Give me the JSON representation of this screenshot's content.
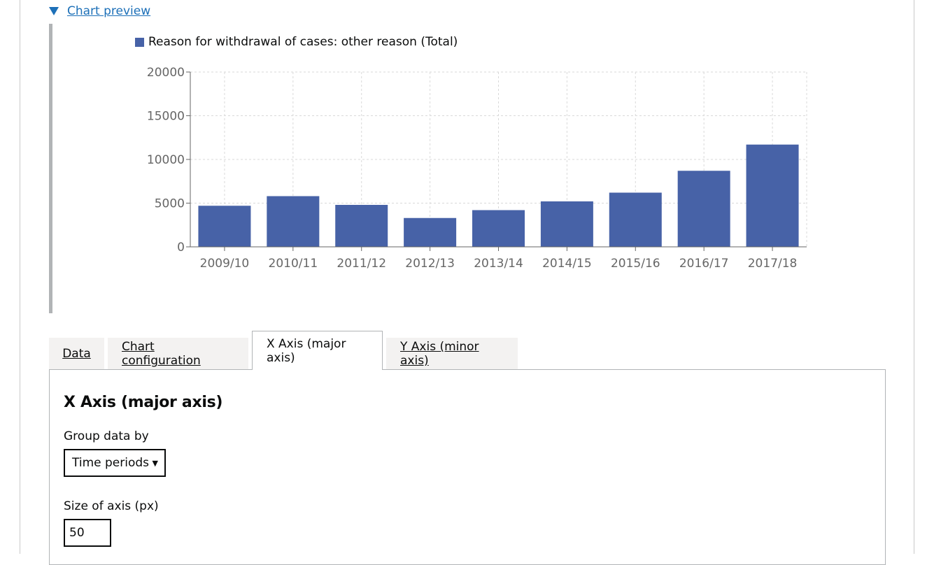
{
  "details": {
    "summary": "Chart preview"
  },
  "chart_data": {
    "type": "bar",
    "legend": "Reason for withdrawal of cases: other reason (Total)",
    "categories": [
      "2009/10",
      "2010/11",
      "2011/12",
      "2012/13",
      "2013/14",
      "2014/15",
      "2015/16",
      "2016/17",
      "2017/18"
    ],
    "series": [
      {
        "name": "Reason for withdrawal of cases: other reason (Total)",
        "values": [
          4700,
          5800,
          4800,
          3300,
          4200,
          5200,
          6200,
          8700,
          11700
        ]
      }
    ],
    "yticks": [
      "0",
      "5000",
      "10000",
      "15000",
      "20000"
    ],
    "ylim": [
      0,
      20000
    ],
    "grid": true,
    "bar_color": "#4762a7"
  },
  "tabs": [
    {
      "label": "Data"
    },
    {
      "label": "Chart configuration"
    },
    {
      "label": "X Axis (major axis)"
    },
    {
      "label": "Y Axis (minor axis)"
    }
  ],
  "panel": {
    "title": "X Axis (major axis)",
    "group_label": "Group data by",
    "group_value": "Time periods",
    "size_label": "Size of axis (px)",
    "size_value": "50"
  }
}
